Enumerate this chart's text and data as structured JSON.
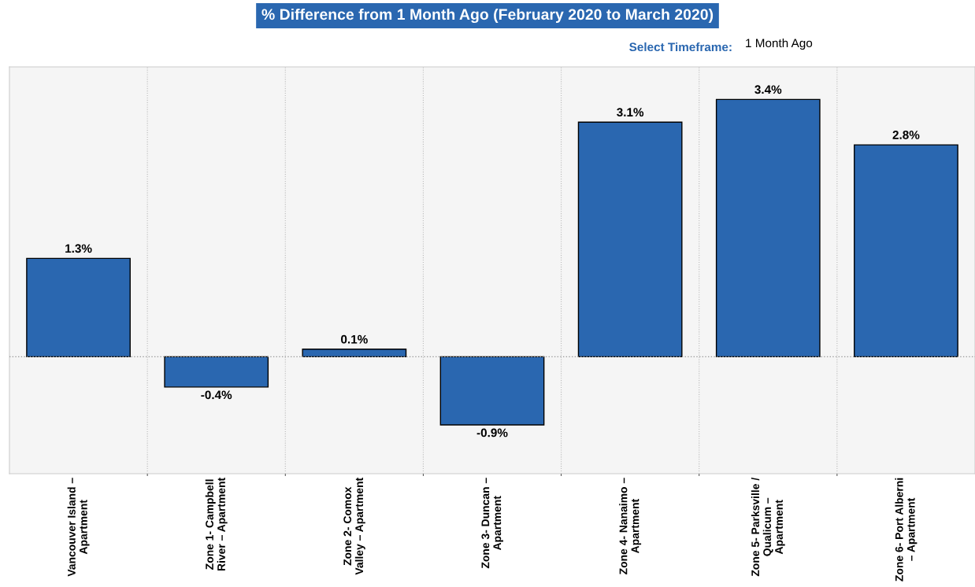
{
  "chart_data": {
    "type": "bar",
    "title": "% Difference from 1 Month Ago (February 2020 to March 2020)",
    "annotations": [
      "Select Timeframe:",
      "1 Month Ago"
    ],
    "categories": [
      "Vancouver Island –\nApartment",
      "Zone 1- Campbell\nRiver – Apartment",
      "Zone 2- Comox\nValley – Apartment",
      "Zone 3- Duncan –\nApartment",
      "Zone 4- Nanaimo –\nApartment",
      "Zone 5- Parksville /\nQualicum –\nApartment",
      "Zone 6- Port Alberni\n– Apartment"
    ],
    "values": [
      1.3,
      -0.4,
      0.1,
      -0.9,
      3.1,
      3.4,
      2.8
    ],
    "value_labels": [
      "1.3%",
      "-0.4%",
      "0.1%",
      "-0.9%",
      "3.1%",
      "3.4%",
      "2.8%"
    ],
    "color": "#2a67b0",
    "grid": "x",
    "ref_lines": [
      {
        "axis": "y",
        "value": 0,
        "color": "#999999",
        "line_style": "dotted"
      }
    ]
  }
}
